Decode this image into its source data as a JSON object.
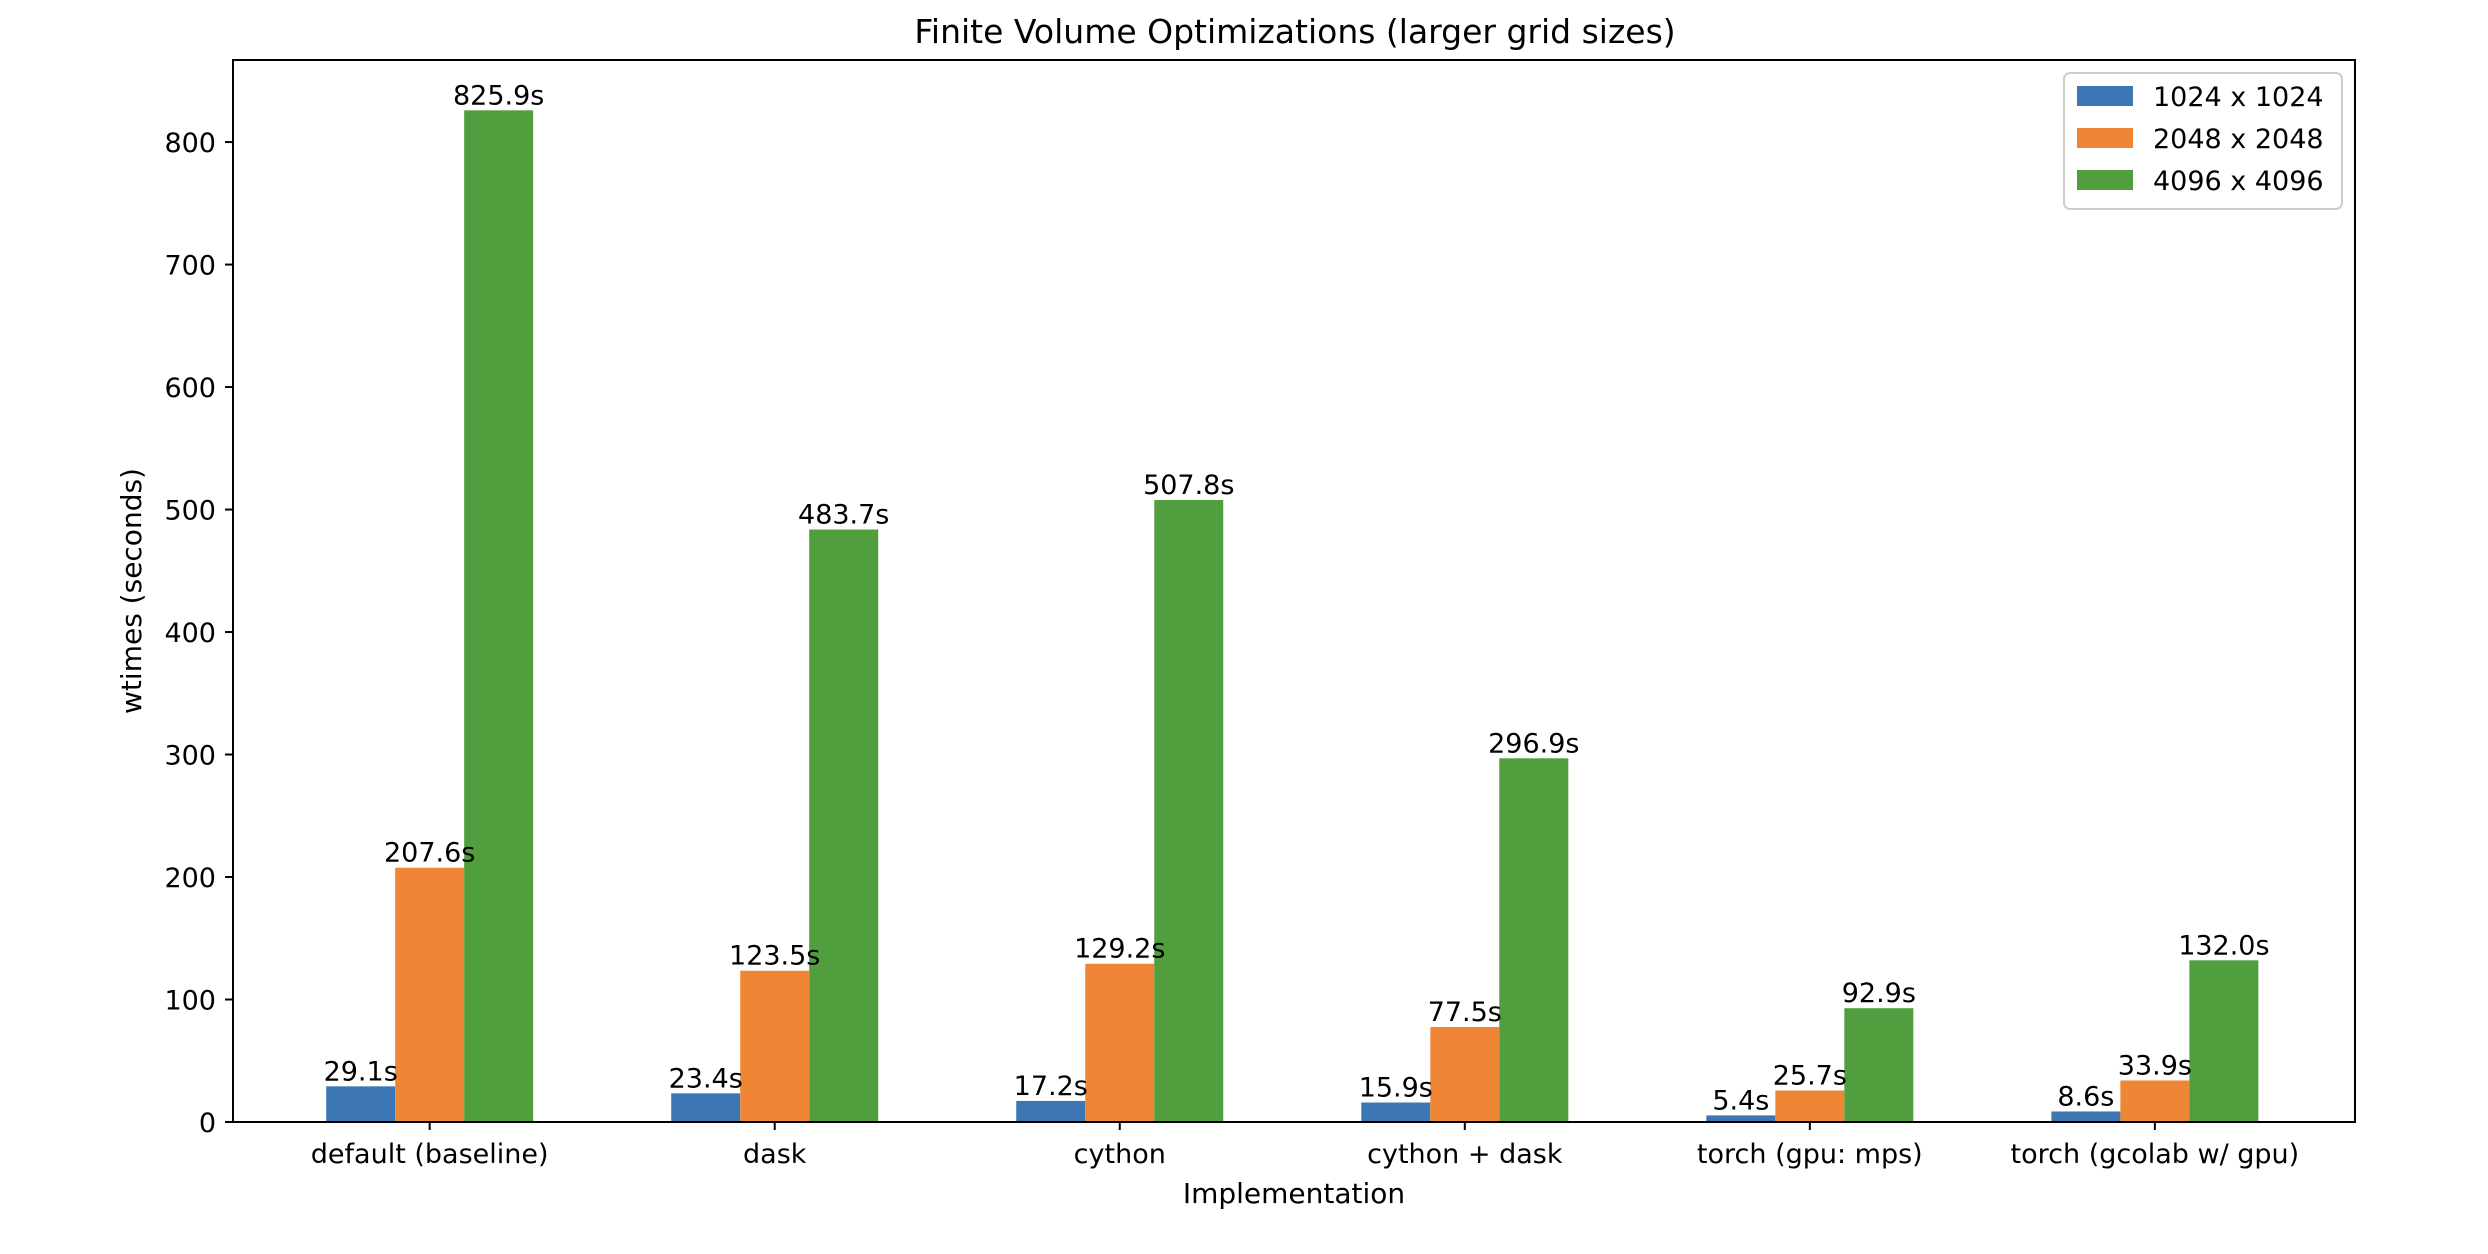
{
  "chart_data": {
    "type": "bar",
    "title": "Finite Volume Optimizations (larger grid sizes)",
    "xlabel": "Implementation",
    "ylabel": "wtimes (seconds)",
    "categories": [
      "default (baseline)",
      "dask",
      "cython",
      "cython + dask",
      "torch (gpu: mps)",
      "torch (gcolab w/ gpu)"
    ],
    "series": [
      {
        "name": "1024 x 1024",
        "color": "#3c76b3",
        "values": [
          29.1,
          23.4,
          17.2,
          15.9,
          5.4,
          8.6
        ],
        "labels": [
          "29.1s",
          "23.4s",
          "17.2s",
          "15.9s",
          "5.4s",
          "8.6s"
        ]
      },
      {
        "name": "2048 x 2048",
        "color": "#ef8636",
        "values": [
          207.6,
          123.5,
          129.2,
          77.5,
          25.7,
          33.9
        ],
        "labels": [
          "207.6s",
          "123.5s",
          "129.2s",
          "77.5s",
          "25.7s",
          "33.9s"
        ]
      },
      {
        "name": "4096 x 4096",
        "color": "#519e3e",
        "values": [
          825.9,
          483.7,
          507.8,
          296.9,
          92.9,
          132.0
        ],
        "labels": [
          "825.9s",
          "483.7s",
          "507.8s",
          "296.9s",
          "92.9s",
          "132.0s"
        ]
      }
    ],
    "yticks": [
      0,
      100,
      200,
      300,
      400,
      500,
      600,
      700,
      800
    ],
    "ytick_labels": [
      "0",
      "100",
      "200",
      "300",
      "400",
      "500",
      "600",
      "700",
      "800"
    ],
    "ylim": [
      0,
      867
    ],
    "grid": false,
    "legend_position": "top-right"
  }
}
